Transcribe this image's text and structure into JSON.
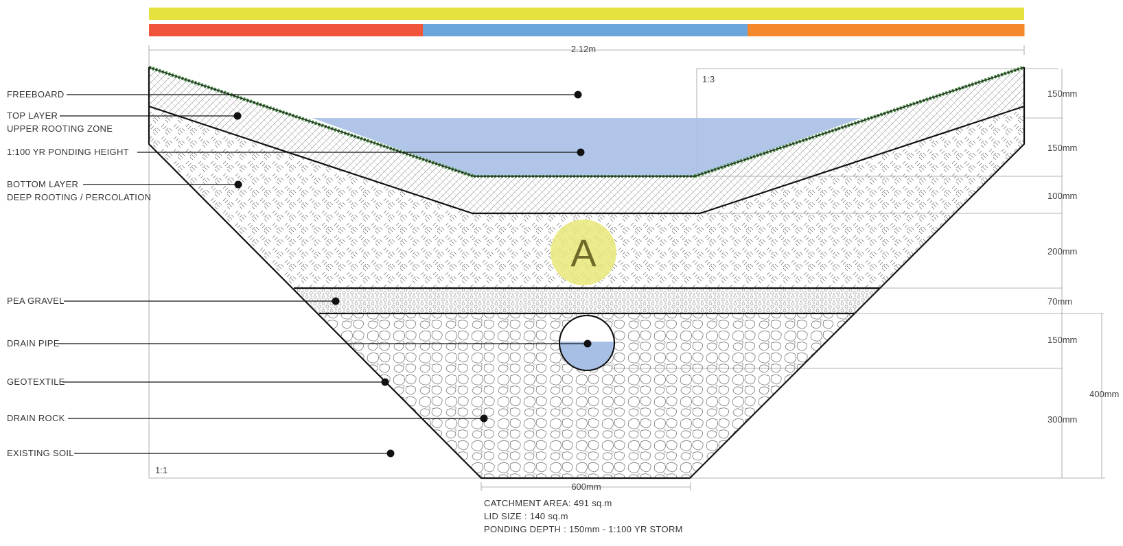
{
  "legend_bars": {
    "top_color": "#e5e23f",
    "bottom_segments": [
      {
        "color": "#f0553c",
        "share": 0.313
      },
      {
        "color": "#6aa6dc",
        "share": 0.371
      },
      {
        "color": "#f5882a",
        "share": 0.316
      }
    ]
  },
  "dimensions": {
    "total_width": "2.12m",
    "base_width": "600mm",
    "slope_top": "1:3",
    "slope_bottom": "1:1",
    "layers": [
      "150mm",
      "150mm",
      "100mm",
      "200mm",
      "70mm",
      "150mm",
      "300mm"
    ],
    "overall": "400mm"
  },
  "callouts": {
    "freeboard": "FREEBOARD",
    "top_layer_1": "TOP LAYER",
    "top_layer_2": "UPPER ROOTING ZONE",
    "ponding": "1:100 YR PONDING HEIGHT",
    "bottom_layer_1": "BOTTOM LAYER",
    "bottom_layer_2": "DEEP ROOTING / PERCOLATION",
    "pea_gravel": "PEA GRAVEL",
    "drain_pipe": "DRAIN PIPE",
    "geotextile": "GEOTEXTILE",
    "drain_rock": "DRAIN ROCK",
    "existing_soil": "EXISTING SOIL"
  },
  "marker": {
    "letter": "A",
    "color": "#e9e879"
  },
  "info": {
    "catchment": "CATCHMENT AREA: 491 sq.m",
    "lid_size": "LID SIZE : 140 sq.m",
    "ponding_depth": "PONDING DEPTH : 150mm - 1:100 YR STORM"
  },
  "colors": {
    "water": "#a7bfe4",
    "grass": "#3f8a3a"
  }
}
